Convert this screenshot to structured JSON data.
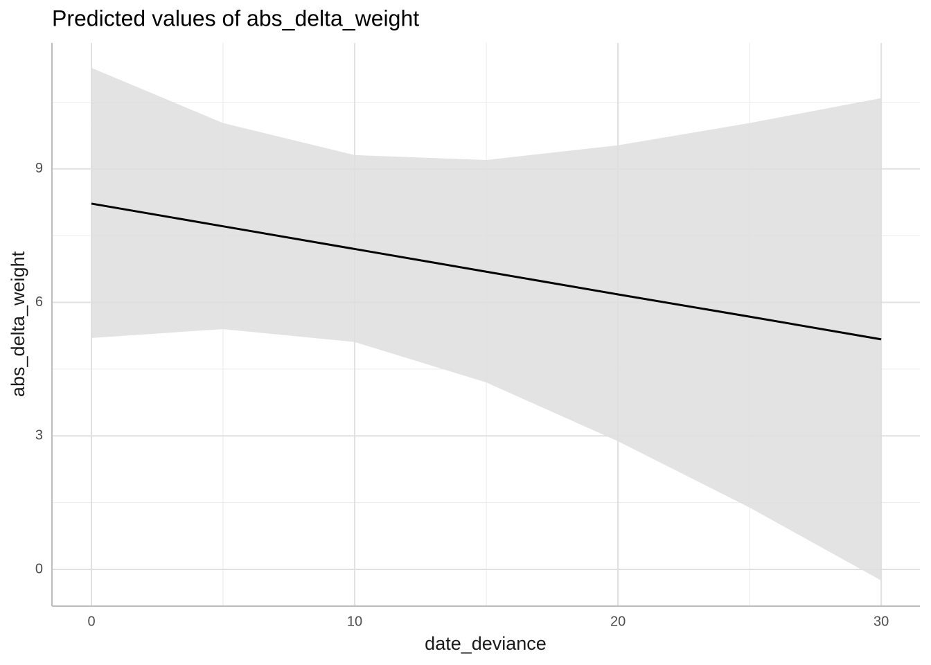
{
  "chart_data": {
    "type": "line",
    "title": "Predicted values of abs_delta_weight",
    "x_label": "date_deviance",
    "y_label": "abs_delta_weight",
    "x": [
      0,
      5,
      10,
      15,
      20,
      25,
      30
    ],
    "series": [
      {
        "color": "#000000",
        "band_color": "#dedede",
        "values": [
          8.22,
          7.71,
          7.2,
          6.69,
          6.18,
          5.68,
          5.17
        ],
        "upper": [
          11.27,
          10.03,
          9.31,
          9.2,
          9.53,
          10.03,
          10.59
        ],
        "lower": [
          5.2,
          5.4,
          5.11,
          4.2,
          2.88,
          1.39,
          -0.25
        ]
      }
    ],
    "xlim": [
      -1.5,
      31.47
    ],
    "ylim": [
      -0.825,
      11.83
    ],
    "xticks": [
      0,
      10,
      20,
      30
    ],
    "yticks": [
      0,
      3,
      6,
      9
    ],
    "xminor": [
      5,
      15,
      25
    ],
    "yminor": [
      1.5,
      4.5,
      7.5,
      10.5
    ],
    "grid": true
  }
}
